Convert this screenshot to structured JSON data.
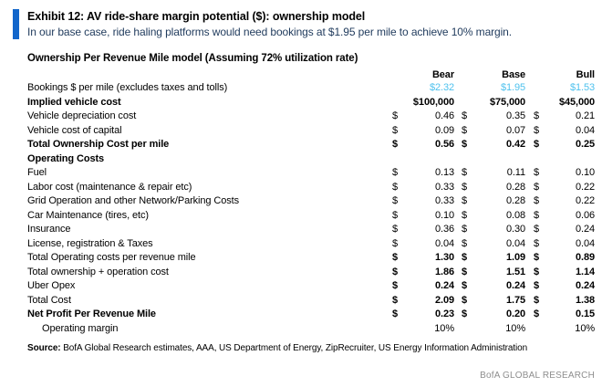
{
  "header": {
    "exhibit_title": "Exhibit 12: AV ride-share margin potential ($): ownership model",
    "subtitle": "In our base case, ride haling platforms would need bookings at $1.95 per mile to achieve 10% margin."
  },
  "table": {
    "title": "Ownership Per Revenue Mile model (Assuming 72% utilization rate)",
    "columns": [
      "Bear",
      "Base",
      "Bull"
    ],
    "rows": [
      {
        "label": "Bookings $ per mile (excludes taxes and tolls)",
        "cells": [
          "",
          "$2.32",
          "",
          "$1.95",
          "",
          "$1.53"
        ]
      },
      {
        "label": "Implied vehicle cost",
        "cells": [
          "",
          "$100,000",
          "",
          "$75,000",
          "",
          "$45,000"
        ]
      },
      {
        "label": "Vehicle depreciation cost",
        "cells": [
          "$",
          "0.46",
          "$",
          "0.35",
          "$",
          "0.21"
        ]
      },
      {
        "label": "Vehicle cost of capital",
        "cells": [
          "$",
          "0.09",
          "$",
          "0.07",
          "$",
          "0.04"
        ]
      },
      {
        "label": "Total Ownership Cost per mile",
        "cells": [
          "$",
          "0.56",
          "$",
          "0.42",
          "$",
          "0.25"
        ]
      },
      {
        "label": "Operating Costs",
        "cells": [
          "",
          "",
          "",
          "",
          "",
          ""
        ]
      },
      {
        "label": "Fuel",
        "cells": [
          "$",
          "0.13",
          "$",
          "0.11",
          "$",
          "0.10"
        ]
      },
      {
        "label": "Labor cost (maintenance & repair etc)",
        "cells": [
          "$",
          "0.33",
          "$",
          "0.28",
          "$",
          "0.22"
        ]
      },
      {
        "label": "Grid Operation and other Network/Parking Costs",
        "cells": [
          "$",
          "0.33",
          "$",
          "0.28",
          "$",
          "0.22"
        ]
      },
      {
        "label": "Car Maintenance (tires, etc)",
        "cells": [
          "$",
          "0.10",
          "$",
          "0.08",
          "$",
          "0.06"
        ]
      },
      {
        "label": "Insurance",
        "cells": [
          "$",
          "0.36",
          "$",
          "0.30",
          "$",
          "0.24"
        ]
      },
      {
        "label": "License, registration & Taxes",
        "cells": [
          "$",
          "0.04",
          "$",
          "0.04",
          "$",
          "0.04"
        ]
      },
      {
        "label": "Total Operating costs per revenue mile",
        "cells": [
          "$",
          "1.30",
          "$",
          "1.09",
          "$",
          "0.89"
        ]
      },
      {
        "label": "Total ownership + operation cost",
        "cells": [
          "$",
          "1.86",
          "$",
          "1.51",
          "$",
          "1.14"
        ]
      },
      {
        "label": "Uber Opex",
        "cells": [
          "$",
          "0.24",
          "$",
          "0.24",
          "$",
          "0.24"
        ]
      },
      {
        "label": "Total Cost",
        "cells": [
          "$",
          "2.09",
          "$",
          "1.75",
          "$",
          "1.38"
        ]
      },
      {
        "label": "Net Profit Per Revenue Mile",
        "cells": [
          "$",
          "0.23",
          "$",
          "0.20",
          "$",
          "0.15"
        ]
      },
      {
        "label": "Operating margin",
        "cells": [
          "",
          "10%",
          "",
          "10%",
          "",
          "10%"
        ]
      }
    ]
  },
  "footer": {
    "source_label": "Source:",
    "source_text": " BofA Global Research estimates, AAA, US Department of Energy, ZipRecruiter, US Energy Information Administration",
    "brand": "BofA GLOBAL RESEARCH"
  },
  "colors": {
    "accent_blue": "#1266cb",
    "subtitle_navy": "#1f3a5c",
    "highlight_light_blue": "#4fc2ee",
    "brand_gray": "#8e8e8e"
  }
}
